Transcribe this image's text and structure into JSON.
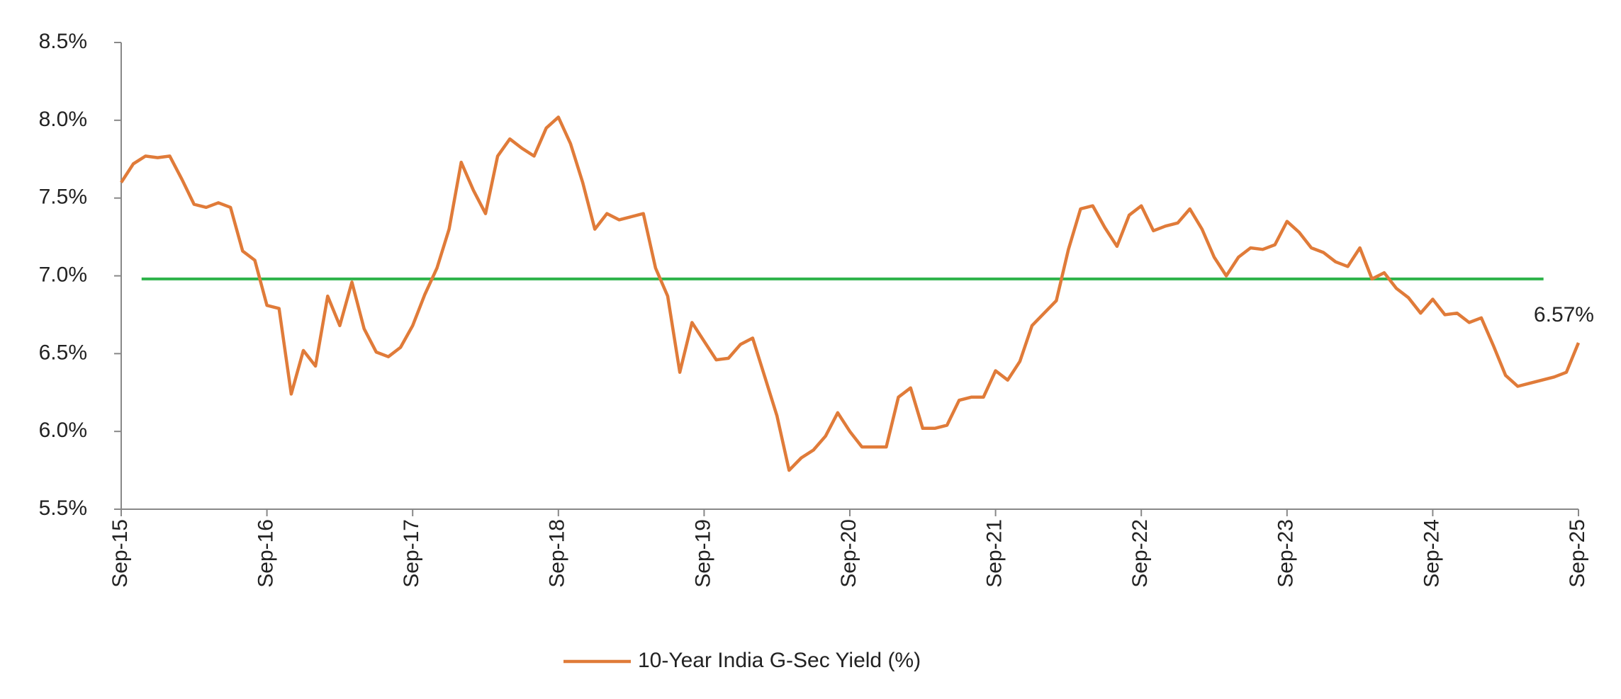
{
  "chart_data": {
    "type": "line",
    "categories": [
      "Sep-15",
      null,
      null,
      null,
      null,
      null,
      null,
      null,
      null,
      null,
      null,
      null,
      "Sep-16",
      null,
      null,
      null,
      null,
      null,
      null,
      null,
      null,
      null,
      null,
      null,
      "Sep-17",
      null,
      null,
      null,
      null,
      null,
      null,
      null,
      null,
      null,
      null,
      null,
      "Sep-18",
      null,
      null,
      null,
      null,
      null,
      null,
      null,
      null,
      null,
      null,
      null,
      "Sep-19",
      null,
      null,
      null,
      null,
      null,
      null,
      null,
      null,
      null,
      null,
      null,
      "Sep-20",
      null,
      null,
      null,
      null,
      null,
      null,
      null,
      null,
      null,
      null,
      null,
      "Sep-21",
      null,
      null,
      null,
      null,
      null,
      null,
      null,
      null,
      null,
      null,
      null,
      "Sep-22",
      null,
      null,
      null,
      null,
      null,
      null,
      null,
      null,
      null,
      null,
      null,
      "Sep-23",
      null,
      null,
      null,
      null,
      null,
      null,
      null,
      null,
      null,
      null,
      null,
      "Sep-24",
      null,
      null,
      null,
      null,
      null,
      null,
      null,
      null,
      null,
      null,
      null,
      "Sep-25"
    ],
    "series": [
      {
        "name": "10-Year India G-Sec Yield (%)",
        "color": "#e07b39",
        "values": [
          7.6,
          7.72,
          7.77,
          7.76,
          7.77,
          7.62,
          7.46,
          7.44,
          7.47,
          7.44,
          7.16,
          7.1,
          6.81,
          6.79,
          6.24,
          6.52,
          6.42,
          6.87,
          6.68,
          6.96,
          6.66,
          6.51,
          6.48,
          6.54,
          6.68,
          6.88,
          7.05,
          7.3,
          7.73,
          7.55,
          7.4,
          7.77,
          7.88,
          7.82,
          7.77,
          7.95,
          8.02,
          7.85,
          7.6,
          7.3,
          7.4,
          7.36,
          7.38,
          7.4,
          7.05,
          6.87,
          6.38,
          6.7,
          6.58,
          6.46,
          6.47,
          6.56,
          6.6,
          6.35,
          6.1,
          5.75,
          5.83,
          5.88,
          5.97,
          6.12,
          6.0,
          5.9,
          5.9,
          5.9,
          6.22,
          6.28,
          6.02,
          6.02,
          6.04,
          6.2,
          6.22,
          6.22,
          6.39,
          6.33,
          6.45,
          6.68,
          6.76,
          6.84,
          7.17,
          7.43,
          7.45,
          7.31,
          7.19,
          7.39,
          7.45,
          7.29,
          7.32,
          7.34,
          7.43,
          7.3,
          7.12,
          7.0,
          7.12,
          7.18,
          7.17,
          7.2,
          7.35,
          7.28,
          7.18,
          7.15,
          7.09,
          7.06,
          7.18,
          6.98,
          7.02,
          6.92,
          6.86,
          6.76,
          6.85,
          6.75,
          6.76,
          6.7,
          6.73,
          6.55,
          6.36,
          6.29,
          6.31,
          6.33,
          6.35,
          6.38,
          6.57
        ]
      }
    ],
    "end_label": "6.57%",
    "reference_line": {
      "value": 6.98,
      "color": "#2db34a"
    },
    "ylim": [
      5.5,
      8.5
    ],
    "yticks": [
      {
        "value": 5.5,
        "label": "5.5%"
      },
      {
        "value": 6.0,
        "label": "6.0%"
      },
      {
        "value": 6.5,
        "label": "6.5%"
      },
      {
        "value": 7.0,
        "label": "7.0%"
      },
      {
        "value": 7.5,
        "label": "7.5%"
      },
      {
        "value": 8.0,
        "label": "8.0%"
      },
      {
        "value": 8.5,
        "label": "8.5%"
      }
    ],
    "grid": false,
    "legend": "bottom"
  }
}
